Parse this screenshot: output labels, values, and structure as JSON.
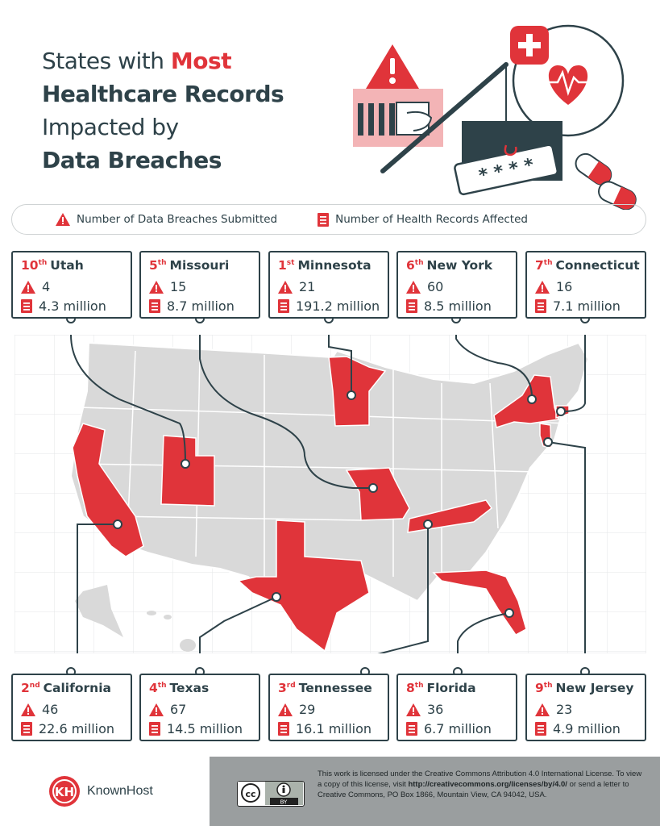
{
  "title": {
    "line1_a": "States with ",
    "line1_b": "Most",
    "line2": "Healthcare Records",
    "line3": "Impacted by",
    "line4": "Data Breaches"
  },
  "legend": {
    "breaches": "Number of Data Breaches Submitted",
    "records": "Number of Health Records Affected"
  },
  "colors": {
    "accent": "#e0343a",
    "dark": "#2e4249",
    "state_gray": "#d9d9d9",
    "footer_gray": "#9a9e9f"
  },
  "icons": {
    "breaches": "warning-triangle-icon",
    "records": "document-icon"
  },
  "top_cards": [
    {
      "rank": "10",
      "suffix": "th",
      "state": "Utah",
      "breaches": "4",
      "records": "4.3 million"
    },
    {
      "rank": "5",
      "suffix": "th",
      "state": "Missouri",
      "breaches": "15",
      "records": "8.7 million"
    },
    {
      "rank": "1",
      "suffix": "st",
      "state": "Minnesota",
      "breaches": "21",
      "records": "191.2 million"
    },
    {
      "rank": "6",
      "suffix": "th",
      "state": "New York",
      "breaches": "60",
      "records": "8.5 million"
    },
    {
      "rank": "7",
      "suffix": "th",
      "state": "Connecticut",
      "breaches": "16",
      "records": "7.1 million"
    }
  ],
  "bottom_cards": [
    {
      "rank": "2",
      "suffix": "nd",
      "state": "California",
      "breaches": "46",
      "records": "22.6 million"
    },
    {
      "rank": "4",
      "suffix": "th",
      "state": "Texas",
      "breaches": "67",
      "records": "14.5 million"
    },
    {
      "rank": "3",
      "suffix": "rd",
      "state": "Tennessee",
      "breaches": "29",
      "records": "16.1 million"
    },
    {
      "rank": "8",
      "suffix": "th",
      "state": "Florida",
      "breaches": "36",
      "records": "6.7 million"
    },
    {
      "rank": "9",
      "suffix": "th",
      "state": "New Jersey",
      "breaches": "23",
      "records": "4.9 million"
    }
  ],
  "brand": {
    "name": "KnownHost",
    "logo_letters": "KH"
  },
  "license": {
    "line1": "This work is licensed under the Creative Commons Attribution 4.0 International License. To view a copy of this license, visit",
    "url": "http://creativecommons.org/licenses/by/4.0/",
    "line2": " or send a letter to Creative Commons, PO Box 1866, Mountain View, CA 94042, USA.",
    "badge_cc": "cc",
    "badge_by": "BY"
  },
  "illustration": {
    "password": "* * * *"
  }
}
